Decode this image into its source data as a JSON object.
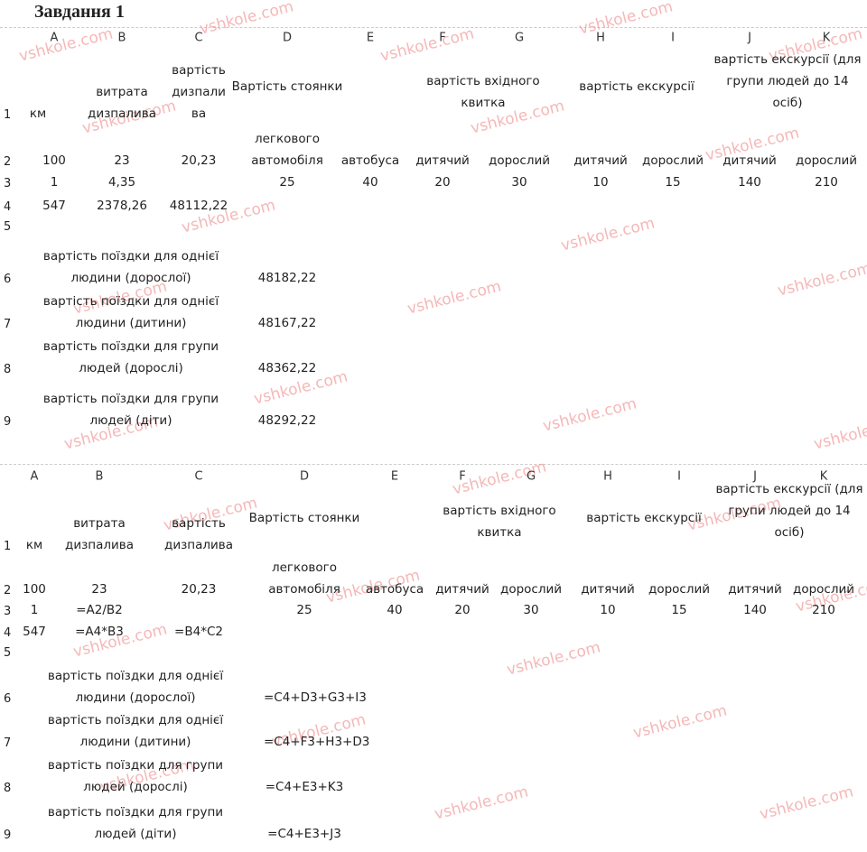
{
  "title": "Завдання 1",
  "watermark": "vshkole.com",
  "tables": [
    {
      "columns": [
        "A",
        "B",
        "C",
        "D",
        "E",
        "F",
        "G",
        "H",
        "I",
        "J",
        "K"
      ],
      "rows": [
        {
          "number": "1",
          "cells": {
            "A": "км",
            "B": "витрата дизпалива",
            "C": "вартість дизпали ва",
            "D": "Вартість стоянки",
            "F": "вартість вхідного квитка",
            "H": "вартість екскурсії",
            "J": "вартість екскурсії (для групи людей до 14 осіб)"
          }
        },
        {
          "number": "2",
          "cells": {
            "A": "100",
            "B": "23",
            "C": "20,23",
            "D": "легкового автомобіля",
            "E": "автобуса",
            "F": "дитячий",
            "G": "дорослий",
            "H": "дитячий",
            "I": "дорослий",
            "J": "дитячий",
            "K": "дорослий"
          }
        },
        {
          "number": "3",
          "cells": {
            "A": "1",
            "B": "4,35",
            "D": "25",
            "E": "40",
            "F": "20",
            "G": "30",
            "H": "10",
            "I": "15",
            "J": "140",
            "K": "210"
          }
        },
        {
          "number": "4",
          "cells": {
            "A": "547",
            "B": "2378,26",
            "C": "48112,22"
          }
        },
        {
          "number": "5",
          "cells": {}
        },
        {
          "number": "6",
          "cells": {
            "A": "вартість поїздки для однієї людини (дорослої)",
            "D": "48182,22"
          }
        },
        {
          "number": "7",
          "cells": {
            "A": "вартість поїздки для однієї людини (дитини)",
            "D": "48167,22"
          }
        },
        {
          "number": "8",
          "cells": {
            "A": "вартість поїздки для групи людей (дорослі)",
            "D": "48362,22"
          }
        },
        {
          "number": "9",
          "cells": {
            "A": "вартість поїздки для групи людей (діти)",
            "D": "48292,22"
          }
        }
      ]
    },
    {
      "columns": [
        "A",
        "B",
        "C",
        "D",
        "E",
        "F",
        "G",
        "H",
        "I",
        "J",
        "K"
      ],
      "rows": [
        {
          "number": "1",
          "cells": {
            "A": "км",
            "B": "витрата дизпалива",
            "C": "вартість дизпалива",
            "D": "Вартість стоянки",
            "F": "вартість вхідного квитка",
            "H": "вартість екскурсії",
            "J": "вартість екскурсії (для групи людей до 14 осіб)"
          }
        },
        {
          "number": "2",
          "cells": {
            "A": "100",
            "B": "23",
            "C": "20,23",
            "D": "легкового автомобіля",
            "E": "автобуса",
            "F": "дитячий",
            "G": "дорослий",
            "H": "дитячий",
            "I": "дорослий",
            "J": "дитячий",
            "K": "дорослий"
          }
        },
        {
          "number": "3",
          "cells": {
            "A": "1",
            "B": "=A2/B2",
            "D": "25",
            "E": "40",
            "F": "20",
            "G": "30",
            "H": "10",
            "I": "15",
            "J": "140",
            "K": "210"
          }
        },
        {
          "number": "4",
          "cells": {
            "A": "547",
            "B": "=A4*B3",
            "C": "=B4*C2"
          }
        },
        {
          "number": "5",
          "cells": {}
        },
        {
          "number": "6",
          "cells": {
            "A": "вартість поїздки для однієї людини (дорослої)",
            "D": "=C4+D3+G3+I3"
          }
        },
        {
          "number": "7",
          "cells": {
            "A": "вартість поїздки для однієї людини (дитини)",
            "D": "=C4+F3+H3+D3"
          }
        },
        {
          "number": "8",
          "cells": {
            "A": "вартість поїздки для групи людей (дорослі)",
            "D": "=C4+E3+K3"
          }
        },
        {
          "number": "9",
          "cells": {
            "A": "вартість поїздки для групи людей (діти)",
            "D": "=C4+E3+J3"
          }
        }
      ]
    }
  ]
}
